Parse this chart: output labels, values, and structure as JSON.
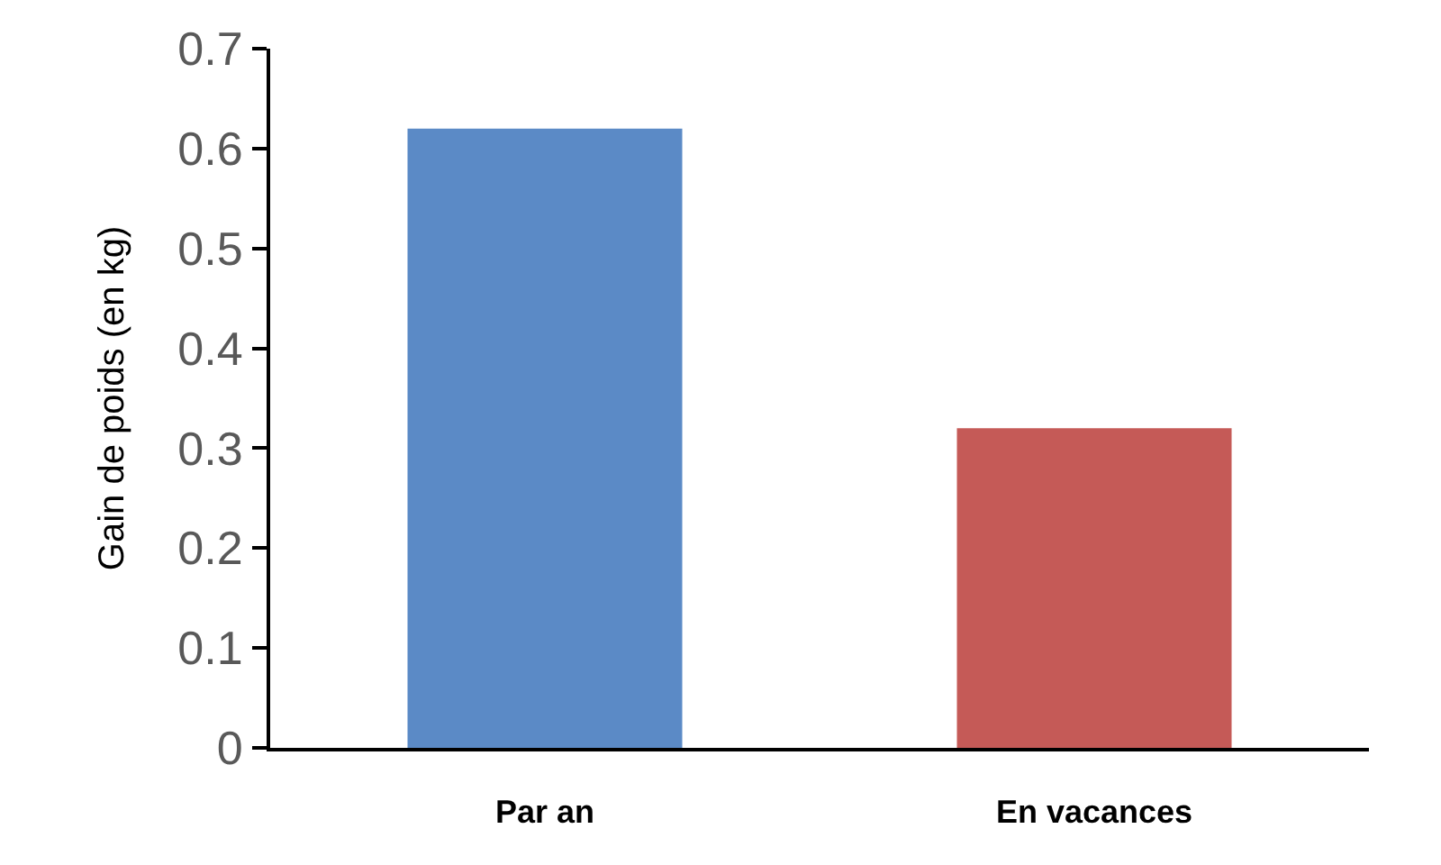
{
  "chart_data": {
    "type": "bar",
    "ylabel": "Gain de poids (en kg)",
    "categories": [
      "Par an",
      "En vacances"
    ],
    "values": [
      0.62,
      0.32
    ],
    "colors": [
      "#5b8ac6",
      "#c55a57"
    ],
    "ylim": [
      0,
      0.7
    ],
    "yticks": [
      0,
      0.1,
      0.2,
      0.3,
      0.4,
      0.5,
      0.6,
      0.7
    ]
  }
}
